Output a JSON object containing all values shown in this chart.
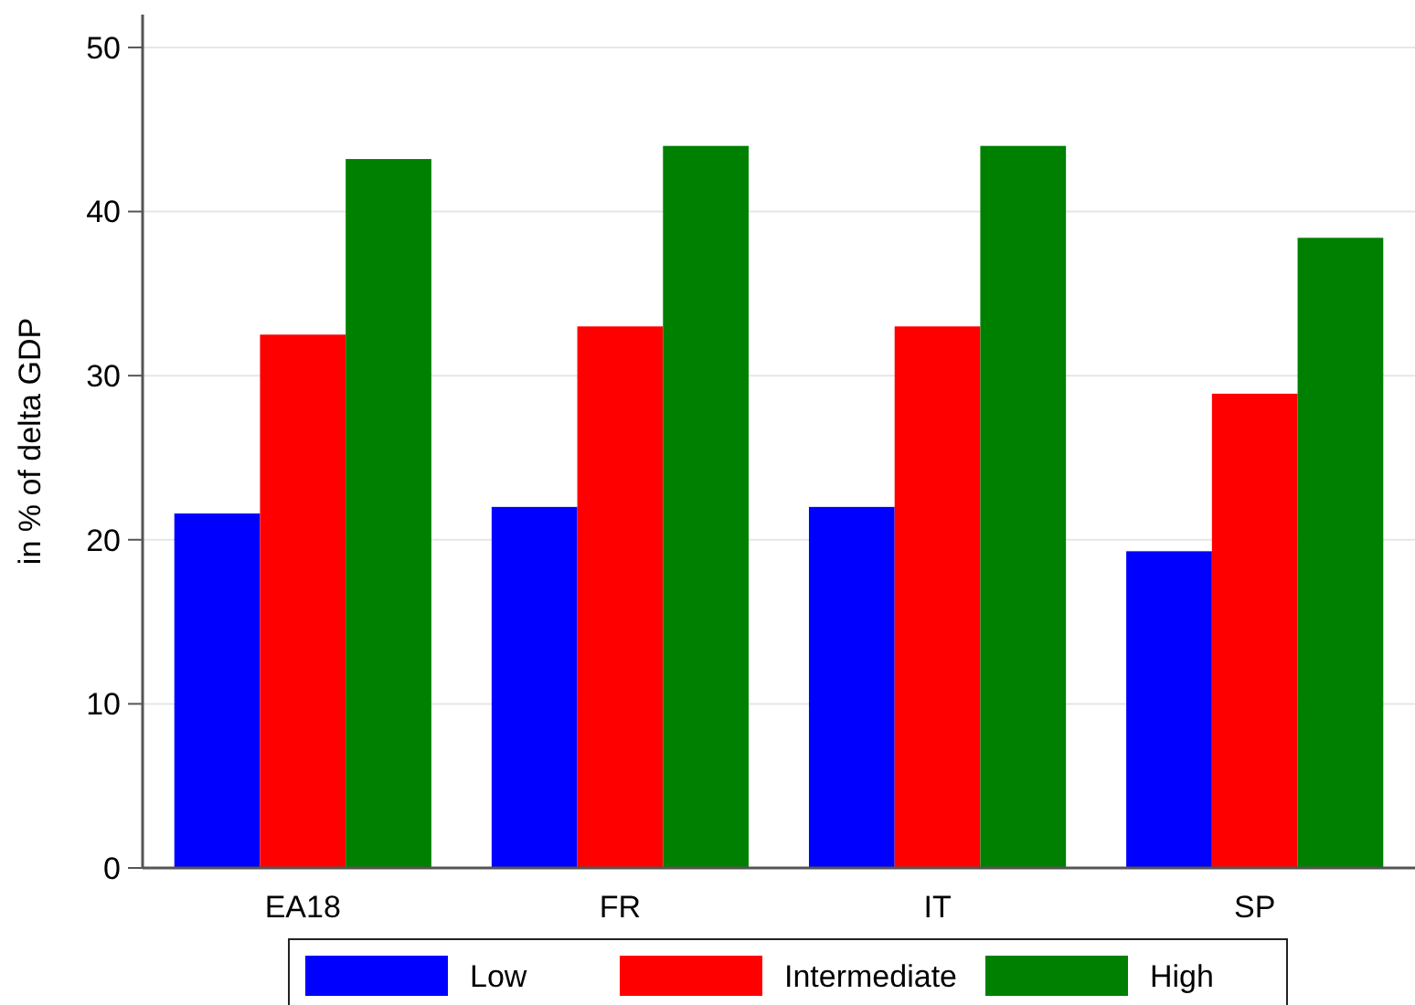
{
  "chart_data": {
    "type": "bar",
    "ylabel": "in % of  delta GDP",
    "categories": [
      "EA18",
      "FR",
      "IT",
      "SP"
    ],
    "series": [
      {
        "name": "Low",
        "color": "#0000ff",
        "values": [
          21.6,
          22.0,
          22.0,
          19.3
        ]
      },
      {
        "name": "Intermediate",
        "color": "#ff0000",
        "values": [
          32.5,
          33.0,
          33.0,
          28.9
        ]
      },
      {
        "name": "High",
        "color": "#008000",
        "values": [
          43.2,
          44.0,
          44.0,
          38.4
        ]
      }
    ],
    "ylim": [
      0,
      52
    ],
    "yticks": [
      0,
      10,
      20,
      30,
      40,
      50
    ],
    "grid": "y",
    "legend": "bottom"
  }
}
